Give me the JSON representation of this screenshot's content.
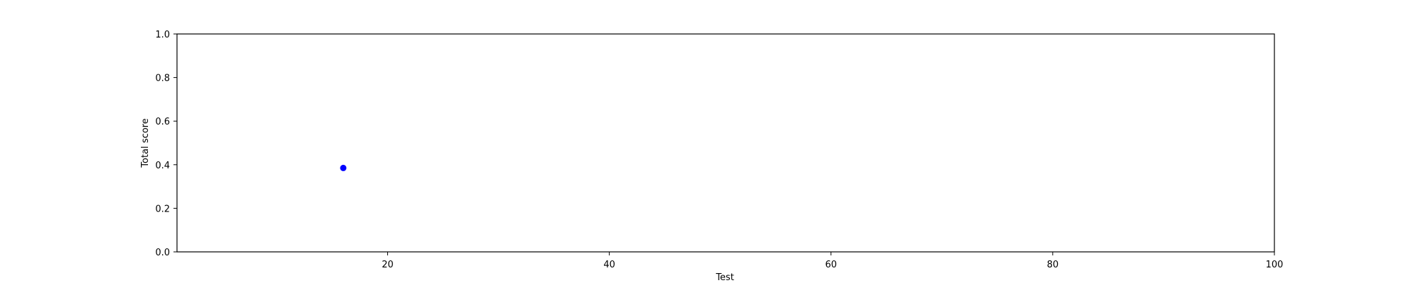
{
  "chart_data": {
    "type": "scatter",
    "title": "",
    "xlabel": "Test",
    "ylabel": "Total score",
    "xlim": [
      1,
      100
    ],
    "ylim": [
      0.0,
      1.0
    ],
    "x_ticks": [
      20,
      40,
      60,
      80,
      100
    ],
    "x_tick_labels": [
      "20",
      "40",
      "60",
      "80",
      "100"
    ],
    "y_ticks": [
      0.0,
      0.2,
      0.4,
      0.6,
      0.8,
      1.0
    ],
    "y_tick_labels": [
      "0.0",
      "0.2",
      "0.4",
      "0.6",
      "0.8",
      "1.0"
    ],
    "grid": false,
    "legend": "none",
    "series": [
      {
        "color": "#0000ff",
        "points": [
          {
            "x": 16,
            "y": 0.385
          }
        ]
      }
    ]
  }
}
